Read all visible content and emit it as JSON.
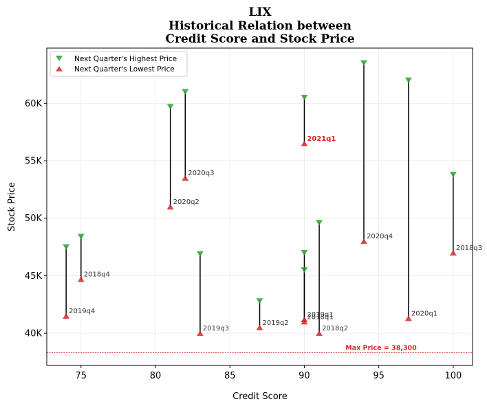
{
  "chart_data": {
    "type": "scatter",
    "title": [
      "LIX",
      "Historical Relation between",
      "Credit Score and Stock Price"
    ],
    "xlabel": "Credit Score",
    "ylabel": "Stock Price",
    "xlim": [
      72.7,
      101.3
    ],
    "ylim": [
      37200,
      64800
    ],
    "xticks": [
      75,
      80,
      85,
      90,
      95,
      100
    ],
    "xtick_labels": [
      "75",
      "80",
      "85",
      "90",
      "95",
      "100"
    ],
    "yticks": [
      40000,
      45000,
      50000,
      55000,
      60000
    ],
    "ytick_labels": [
      "40K",
      "45K",
      "50K",
      "55K",
      "60K"
    ],
    "grid": true,
    "legend": {
      "position": "top-left",
      "entries": [
        {
          "label": "Next Quarter's Highest Price",
          "marker": "triangle-down",
          "color": "#2ca02c"
        },
        {
          "label": "Next Quarter's Lowest Price",
          "marker": "triangle-up",
          "color": "#d62728"
        }
      ]
    },
    "points": [
      {
        "label": "2019q4",
        "x": 74,
        "high": 47500,
        "low": 41500,
        "highlight": false
      },
      {
        "label": "2018q4",
        "x": 75,
        "high": 48400,
        "low": 44700,
        "highlight": false
      },
      {
        "label": "2020q2",
        "x": 81,
        "high": 59700,
        "low": 51000,
        "highlight": false
      },
      {
        "label": "2020q3",
        "x": 82,
        "high": 61000,
        "low": 53500,
        "highlight": false
      },
      {
        "label": "2019q3",
        "x": 83,
        "high": 46900,
        "low": 40000,
        "highlight": false
      },
      {
        "label": "2019q2",
        "x": 87,
        "high": 42800,
        "low": 40500,
        "highlight": false
      },
      {
        "label": "2021q1",
        "x": 90,
        "high": 60500,
        "low": 56500,
        "highlight": true
      },
      {
        "label": "2019q1",
        "x": 90,
        "high": 47000,
        "low": 41200,
        "highlight": false
      },
      {
        "label": "2018q1",
        "x": 90,
        "high": 45500,
        "low": 41000,
        "highlight": false
      },
      {
        "label": "2018q2",
        "x": 91,
        "high": 49600,
        "low": 40000,
        "highlight": false
      },
      {
        "label": "2020q4",
        "x": 94,
        "high": 63500,
        "low": 48000,
        "highlight": false
      },
      {
        "label": "2020q1",
        "x": 97,
        "high": 62000,
        "low": 41300,
        "highlight": false
      },
      {
        "label": "2018q3",
        "x": 100,
        "high": 53800,
        "low": 47000,
        "highlight": false
      }
    ],
    "reference_line": {
      "value": 38300,
      "label": "Max Price = 38,300",
      "color": "#d62728",
      "style": "dashed"
    },
    "colors": {
      "high": "#2ca02c",
      "low": "#d62728",
      "stem": "#000000",
      "highlight_label": "#d62728"
    }
  }
}
